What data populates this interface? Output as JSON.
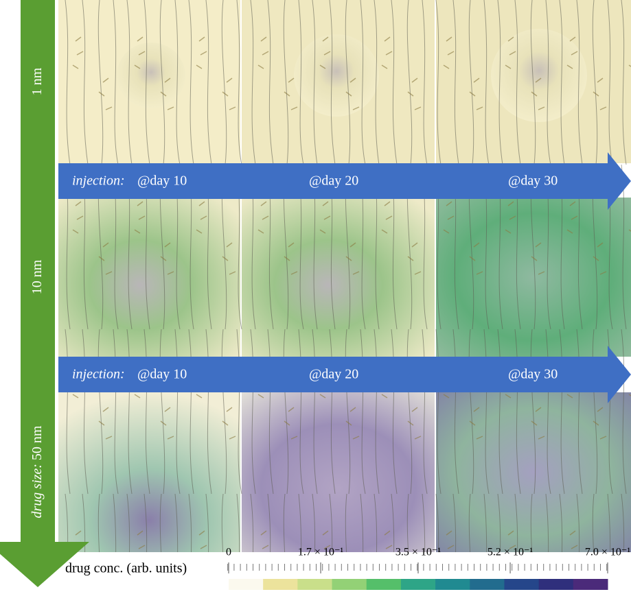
{
  "rows": [
    {
      "size": "1 nm"
    },
    {
      "size": "10 nm"
    },
    {
      "prefix": "drug size:",
      "size": "50 nm"
    }
  ],
  "injection_arrows": [
    {
      "prefix": "injection:",
      "days": [
        "@day 10",
        "@day 20",
        "@day 30"
      ]
    },
    {
      "prefix": "injection:",
      "days": [
        "@day 10",
        "@day 20",
        "@day 30"
      ]
    }
  ],
  "colorbar": {
    "label": "drug conc. (arb. units)",
    "lim": [
      0,
      0.7
    ],
    "ticks": [
      {
        "value": 0,
        "label": "0"
      },
      {
        "value": 0.17,
        "label": "1.7 × 10⁻¹"
      },
      {
        "value": 0.35,
        "label": "3.5 × 10⁻¹"
      },
      {
        "value": 0.52,
        "label": "5.2 × 10⁻¹"
      },
      {
        "value": 0.7,
        "label": "7.0 × 10⁻¹"
      }
    ],
    "colors": [
      "#fbf9ee",
      "#ece39c",
      "#c9df8a",
      "#93d176",
      "#55bf6a",
      "#2ea587",
      "#208a91",
      "#226c8e",
      "#25468a",
      "#2f2f7c",
      "#4b2a7a"
    ]
  }
}
